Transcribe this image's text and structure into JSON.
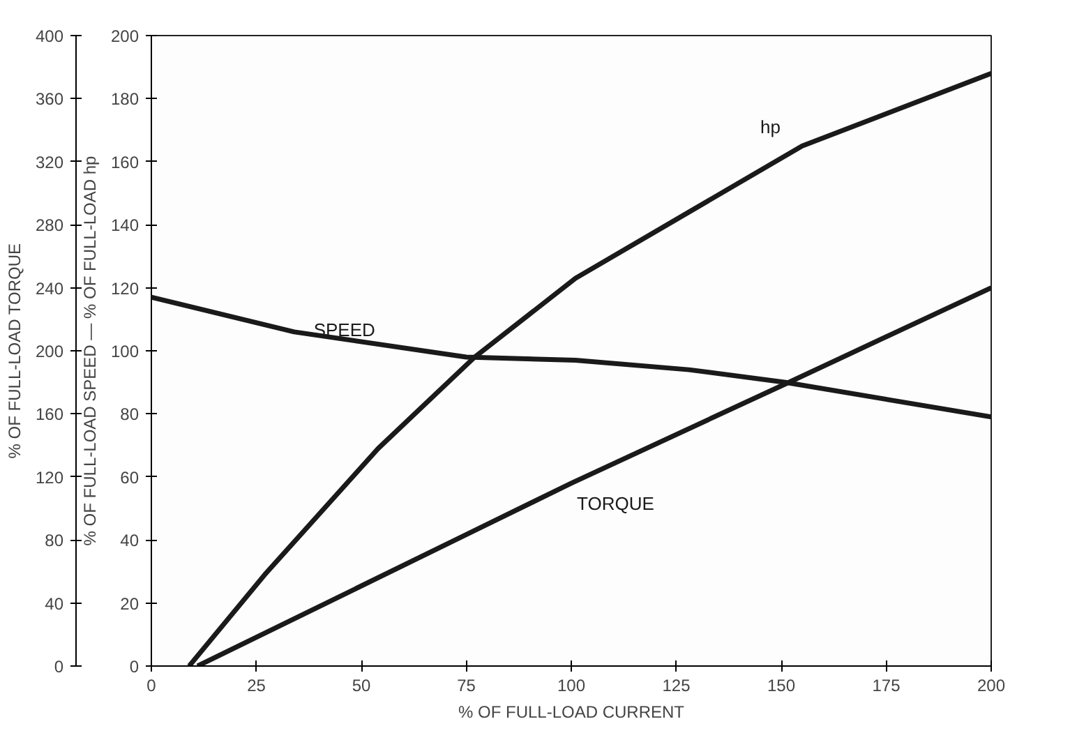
{
  "chart_data": {
    "type": "line",
    "xlabel": "% OF FULL-LOAD CURRENT",
    "ylabel": "% OF FULL-LOAD TORQUE",
    "y2label": "% OF FULL-LOAD SPEED — % OF FULL-LOAD hp",
    "xlim": [
      0,
      200
    ],
    "xticks": [
      0,
      25,
      50,
      75,
      100,
      125,
      150,
      175,
      200
    ],
    "ylim": [
      0,
      400
    ],
    "yticks": [
      0,
      40,
      80,
      120,
      160,
      200,
      240,
      280,
      320,
      360,
      400
    ],
    "y2lim": [
      0,
      200
    ],
    "y2ticks": [
      0,
      20,
      40,
      60,
      80,
      100,
      120,
      140,
      160,
      180,
      200
    ],
    "grid": false,
    "legend": false,
    "marker": "none",
    "line_style": "solid",
    "series": [
      {
        "name": "SPEED",
        "color": "#1a1a1a",
        "axis": "y2",
        "x": [
          0,
          34,
          75,
          101,
          128,
          151,
          200
        ],
        "values": [
          117,
          106,
          98,
          97,
          94,
          90,
          79
        ]
      },
      {
        "name": "hp",
        "color": "#1a1a1a",
        "axis": "y2",
        "x": [
          9,
          27,
          54,
          77,
          101,
          128,
          155,
          200
        ],
        "values": [
          0,
          29,
          69,
          98,
          123,
          144,
          165,
          188
        ]
      },
      {
        "name": "TORQUE",
        "color": "#1a1a1a",
        "axis": "y",
        "x": [
          11,
          100,
          151,
          200
        ],
        "values": [
          0,
          116,
          179,
          240
        ]
      }
    ]
  }
}
